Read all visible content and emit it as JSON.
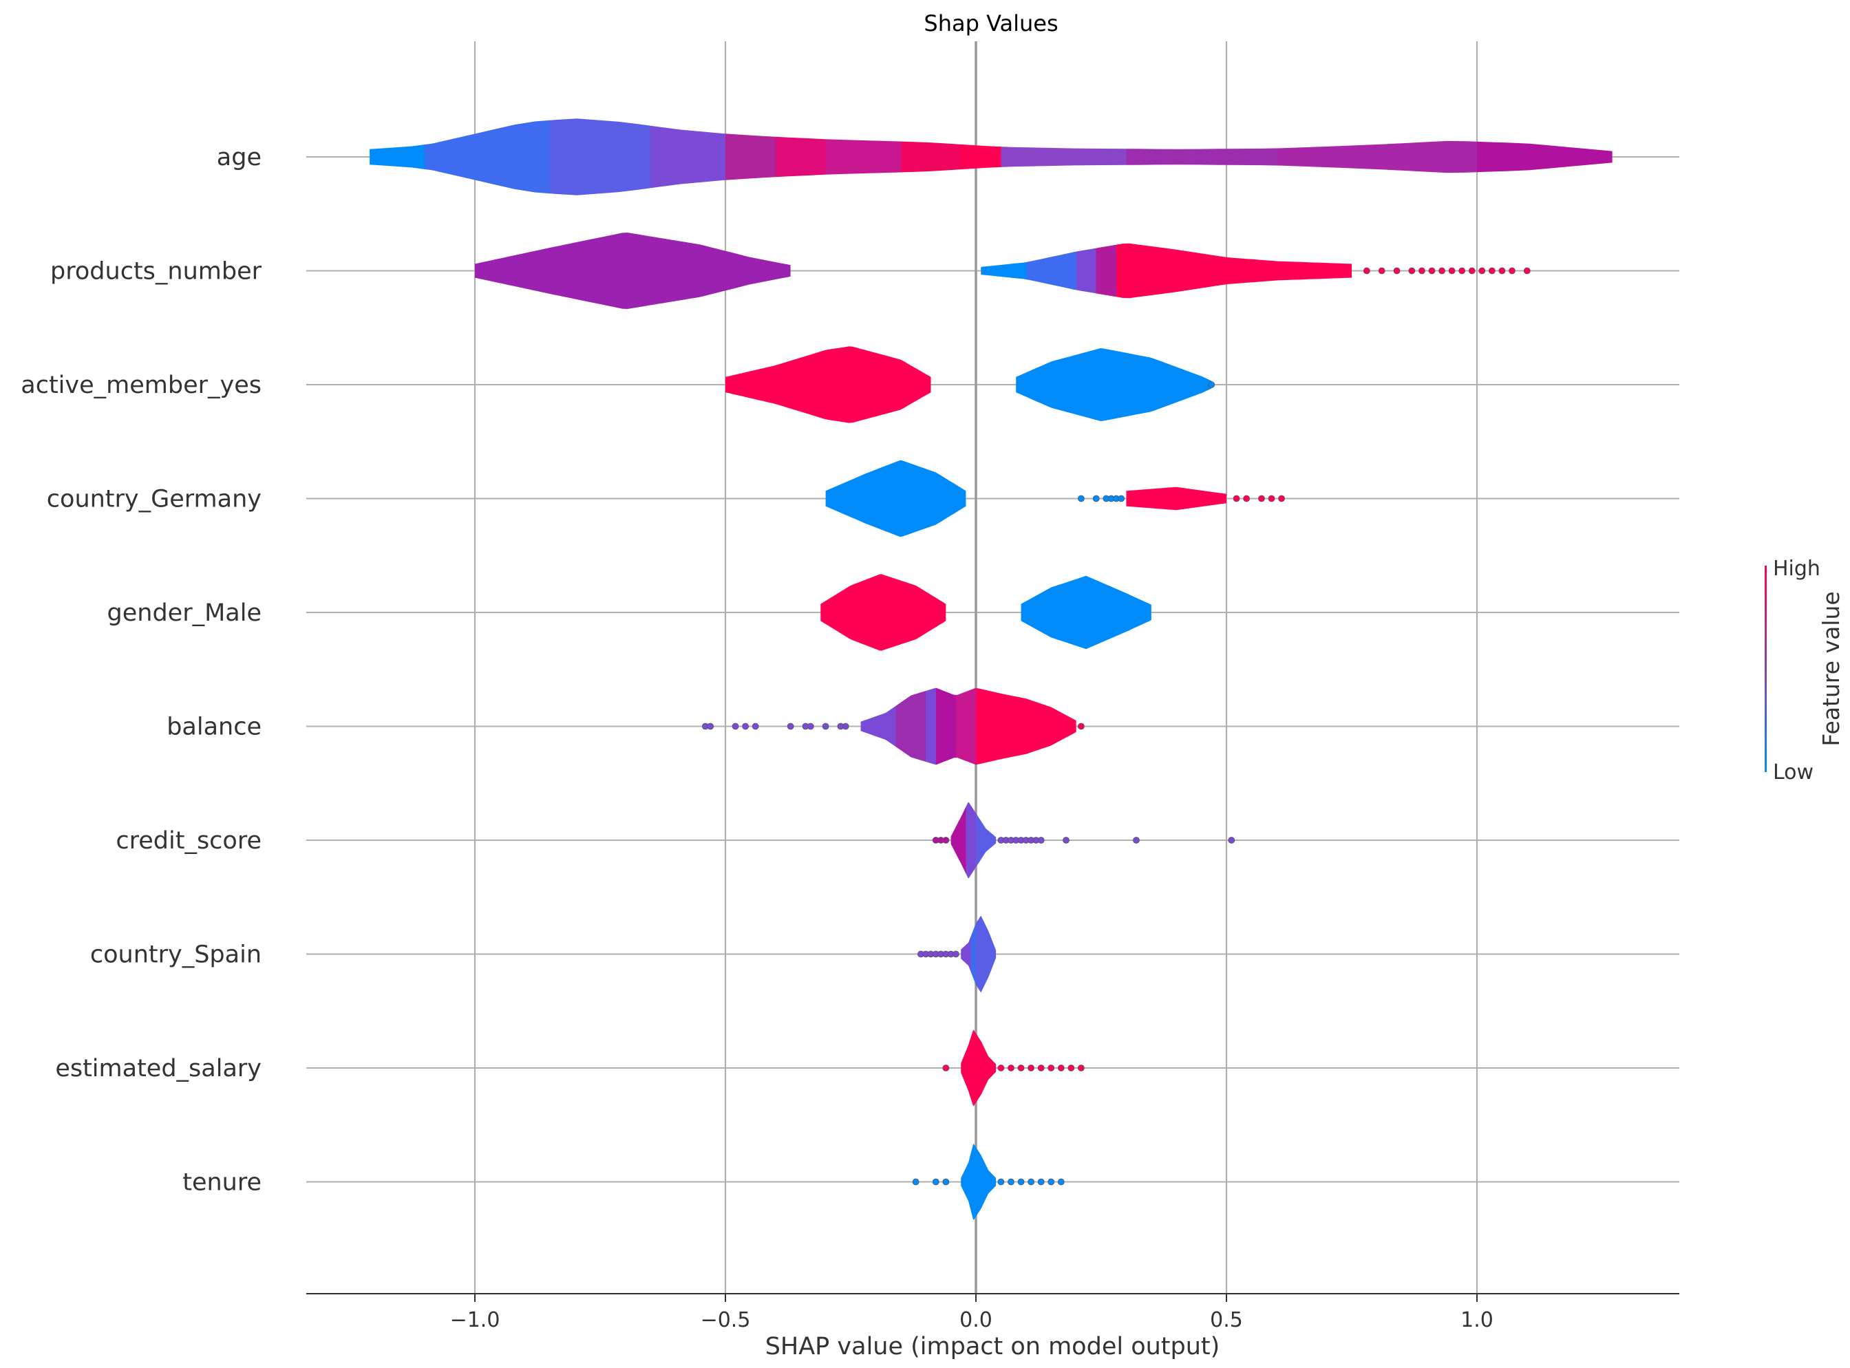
{
  "chart_data": {
    "type": "violin",
    "title": "Shap Values",
    "xlabel": "SHAP value (impact on model output)",
    "ylabel": "",
    "xlim": [
      -1.34,
      1.4
    ],
    "x_ticks": [
      -1.0,
      -0.5,
      0.0,
      0.5,
      1.0
    ],
    "x_tick_labels": [
      "−1.0",
      "−0.5",
      "0.0",
      "0.5",
      "1.0"
    ],
    "grid": true,
    "colorbar": {
      "label": "Feature value",
      "high_label": "High",
      "low_label": "Low",
      "low_color": "#008bfb",
      "high_color": "#ff0052"
    },
    "features": [
      {
        "name": "age",
        "range": [
          -1.21,
          1.27
        ],
        "width": [
          [
            -1.21,
            0.2
          ],
          [
            -1.1,
            0.3
          ],
          [
            -1.0,
            0.6
          ],
          [
            -0.9,
            0.9
          ],
          [
            -0.8,
            1.0
          ],
          [
            -0.7,
            0.9
          ],
          [
            -0.6,
            0.72
          ],
          [
            -0.5,
            0.6
          ],
          [
            -0.4,
            0.52
          ],
          [
            -0.3,
            0.46
          ],
          [
            -0.2,
            0.42
          ],
          [
            -0.1,
            0.38
          ],
          [
            0.0,
            0.3
          ],
          [
            0.05,
            0.26
          ],
          [
            0.2,
            0.22
          ],
          [
            0.4,
            0.2
          ],
          [
            0.6,
            0.22
          ],
          [
            0.8,
            0.32
          ],
          [
            0.95,
            0.42
          ],
          [
            1.1,
            0.35
          ],
          [
            1.27,
            0.15
          ]
        ],
        "colors": [
          [
            -1.21,
            "#008bfb"
          ],
          [
            -1.1,
            "#3d6cf0"
          ],
          [
            -0.85,
            "#5a5de6"
          ],
          [
            -0.65,
            "#7c4bd6"
          ],
          [
            -0.5,
            "#b0249b"
          ],
          [
            -0.4,
            "#e00a78"
          ],
          [
            -0.3,
            "#c81891"
          ],
          [
            -0.15,
            "#f0065f"
          ],
          [
            -0.03,
            "#ff0052"
          ],
          [
            0.05,
            "#8b45c8"
          ],
          [
            0.3,
            "#9b2dae"
          ],
          [
            0.6,
            "#a926a8"
          ],
          [
            1.0,
            "#b0129f"
          ],
          [
            1.27,
            "#b0129f"
          ]
        ],
        "dots": []
      },
      {
        "name": "products_number",
        "range": [
          -1.0,
          0.75
        ],
        "segments": [
          [
            -1.0,
            -0.37
          ],
          [
            0.01,
            0.75
          ]
        ],
        "width": [
          [
            -1.0,
            0.18
          ],
          [
            -0.85,
            0.6
          ],
          [
            -0.7,
            1.0
          ],
          [
            -0.55,
            0.68
          ],
          [
            -0.45,
            0.35
          ],
          [
            -0.37,
            0.15
          ],
          [
            0.01,
            0.1
          ],
          [
            0.1,
            0.22
          ],
          [
            0.2,
            0.5
          ],
          [
            0.3,
            0.72
          ],
          [
            0.4,
            0.55
          ],
          [
            0.5,
            0.35
          ],
          [
            0.6,
            0.25
          ],
          [
            0.75,
            0.18
          ]
        ],
        "colors": [
          [
            -1.0,
            "#9b22b0"
          ],
          [
            -0.37,
            "#9b22b0"
          ],
          [
            0.01,
            "#008bfb"
          ],
          [
            0.1,
            "#3d6cf0"
          ],
          [
            0.2,
            "#7a4ad6"
          ],
          [
            0.24,
            "#b01a9c"
          ],
          [
            0.28,
            "#ff0052"
          ],
          [
            0.75,
            "#ff0052"
          ]
        ],
        "dots": [
          0.78,
          0.81,
          0.84,
          0.87,
          0.89,
          0.91,
          0.93,
          0.95,
          0.97,
          0.99,
          1.01,
          1.03,
          1.05,
          1.07,
          1.1
        ]
      },
      {
        "name": "active_member_yes",
        "range": [
          -0.5,
          0.47
        ],
        "segments": [
          [
            -0.5,
            -0.09
          ],
          [
            0.08,
            0.47
          ]
        ],
        "width": [
          [
            -0.5,
            0.2
          ],
          [
            -0.4,
            0.5
          ],
          [
            -0.3,
            0.9
          ],
          [
            -0.25,
            1.0
          ],
          [
            -0.15,
            0.65
          ],
          [
            -0.09,
            0.2
          ],
          [
            0.08,
            0.2
          ],
          [
            0.15,
            0.6
          ],
          [
            0.25,
            0.95
          ],
          [
            0.35,
            0.7
          ],
          [
            0.45,
            0.22
          ],
          [
            0.47,
            0.1
          ]
        ],
        "colors": [
          [
            -0.5,
            "#ff0052"
          ],
          [
            -0.09,
            "#ff0052"
          ],
          [
            0.08,
            "#008bfb"
          ],
          [
            0.47,
            "#008bfb"
          ]
        ],
        "dots": [
          0.47
        ]
      },
      {
        "name": "country_Germany",
        "range": [
          -0.3,
          0.5
        ],
        "segments": [
          [
            -0.3,
            -0.02
          ],
          [
            0.3,
            0.5
          ]
        ],
        "width": [
          [
            -0.3,
            0.2
          ],
          [
            -0.22,
            0.65
          ],
          [
            -0.15,
            1.0
          ],
          [
            -0.08,
            0.68
          ],
          [
            -0.02,
            0.2
          ],
          [
            0.3,
            0.2
          ],
          [
            0.4,
            0.3
          ],
          [
            0.5,
            0.12
          ]
        ],
        "colors": [
          [
            -0.3,
            "#008bfb"
          ],
          [
            -0.02,
            "#008bfb"
          ],
          [
            0.3,
            "#ff0052"
          ],
          [
            0.5,
            "#ff0052"
          ]
        ],
        "dots": [
          0.21,
          0.24,
          0.26,
          0.27,
          0.28,
          0.29,
          0.52,
          0.54,
          0.57,
          0.59,
          0.61
        ]
      },
      {
        "name": "gender_Male",
        "range": [
          -0.31,
          0.35
        ],
        "segments": [
          [
            -0.31,
            -0.06
          ],
          [
            0.09,
            0.35
          ]
        ],
        "width": [
          [
            -0.31,
            0.22
          ],
          [
            -0.25,
            0.7
          ],
          [
            -0.19,
            1.0
          ],
          [
            -0.12,
            0.7
          ],
          [
            -0.06,
            0.22
          ],
          [
            0.09,
            0.22
          ],
          [
            0.15,
            0.65
          ],
          [
            0.22,
            0.95
          ],
          [
            0.3,
            0.5
          ],
          [
            0.35,
            0.2
          ]
        ],
        "colors": [
          [
            -0.31,
            "#ff0052"
          ],
          [
            -0.06,
            "#ff0052"
          ],
          [
            0.09,
            "#008bfb"
          ],
          [
            0.35,
            "#008bfb"
          ]
        ],
        "dots": []
      },
      {
        "name": "balance",
        "range": [
          -0.23,
          0.2
        ],
        "width": [
          [
            -0.23,
            0.12
          ],
          [
            -0.18,
            0.35
          ],
          [
            -0.13,
            0.8
          ],
          [
            -0.08,
            1.0
          ],
          [
            -0.04,
            0.8
          ],
          [
            0.0,
            1.0
          ],
          [
            0.05,
            0.85
          ],
          [
            0.1,
            0.72
          ],
          [
            0.15,
            0.5
          ],
          [
            0.2,
            0.15
          ]
        ],
        "colors": [
          [
            -0.23,
            "#7a4ad6"
          ],
          [
            -0.16,
            "#9b2dae"
          ],
          [
            -0.1,
            "#7a4ad6"
          ],
          [
            -0.08,
            "#b0129f"
          ],
          [
            -0.04,
            "#c81891"
          ],
          [
            0.0,
            "#ff0052"
          ],
          [
            0.2,
            "#ff0052"
          ]
        ],
        "dots": [
          -0.54,
          -0.53,
          -0.48,
          -0.46,
          -0.44,
          -0.37,
          -0.34,
          -0.33,
          -0.3,
          -0.27,
          -0.26,
          0.21
        ]
      },
      {
        "name": "credit_score",
        "range": [
          -0.05,
          0.04
        ],
        "width": [
          [
            -0.05,
            0.1
          ],
          [
            -0.03,
            0.6
          ],
          [
            -0.015,
            1.0
          ],
          [
            0.0,
            0.7
          ],
          [
            0.02,
            0.3
          ],
          [
            0.04,
            0.08
          ]
        ],
        "colors": [
          [
            -0.05,
            "#b0129f"
          ],
          [
            -0.02,
            "#7a4ad6"
          ],
          [
            0.0,
            "#5a5de6"
          ],
          [
            0.04,
            "#7a4ad6"
          ]
        ],
        "dots": [
          -0.08,
          -0.07,
          -0.06,
          0.05,
          0.06,
          0.07,
          0.08,
          0.09,
          0.1,
          0.11,
          0.12,
          0.13,
          0.18,
          0.32,
          0.51
        ]
      },
      {
        "name": "country_Spain",
        "range": [
          -0.03,
          0.04
        ],
        "width": [
          [
            -0.03,
            0.12
          ],
          [
            -0.015,
            0.3
          ],
          [
            0.0,
            0.8
          ],
          [
            0.01,
            1.0
          ],
          [
            0.025,
            0.6
          ],
          [
            0.04,
            0.1
          ]
        ],
        "colors": [
          [
            -0.03,
            "#7a4ad6"
          ],
          [
            -0.01,
            "#3d6cf0"
          ],
          [
            0.0,
            "#5a5de6"
          ],
          [
            0.04,
            "#7a4ad6"
          ]
        ],
        "dots": [
          -0.11,
          -0.1,
          -0.09,
          -0.08,
          -0.07,
          -0.06,
          -0.05,
          -0.04
        ]
      },
      {
        "name": "estimated_salary",
        "range": [
          -0.03,
          0.04
        ],
        "width": [
          [
            -0.03,
            0.12
          ],
          [
            -0.015,
            0.6
          ],
          [
            -0.005,
            1.0
          ],
          [
            0.01,
            0.7
          ],
          [
            0.025,
            0.3
          ],
          [
            0.04,
            0.1
          ]
        ],
        "colors": [
          [
            -0.03,
            "#ff0052"
          ],
          [
            0.04,
            "#ff0052"
          ]
        ],
        "dots": [
          -0.06,
          0.05,
          0.07,
          0.09,
          0.11,
          0.13,
          0.15,
          0.17,
          0.19,
          0.21
        ]
      },
      {
        "name": "tenure",
        "range": [
          -0.03,
          0.04
        ],
        "width": [
          [
            -0.03,
            0.1
          ],
          [
            -0.015,
            0.5
          ],
          [
            -0.005,
            1.0
          ],
          [
            0.01,
            0.7
          ],
          [
            0.025,
            0.3
          ],
          [
            0.04,
            0.1
          ]
        ],
        "colors": [
          [
            -0.03,
            "#008bfb"
          ],
          [
            0.04,
            "#008bfb"
          ]
        ],
        "dots": [
          -0.12,
          -0.08,
          -0.06,
          0.05,
          0.07,
          0.09,
          0.11,
          0.13,
          0.15,
          0.17
        ]
      }
    ]
  }
}
